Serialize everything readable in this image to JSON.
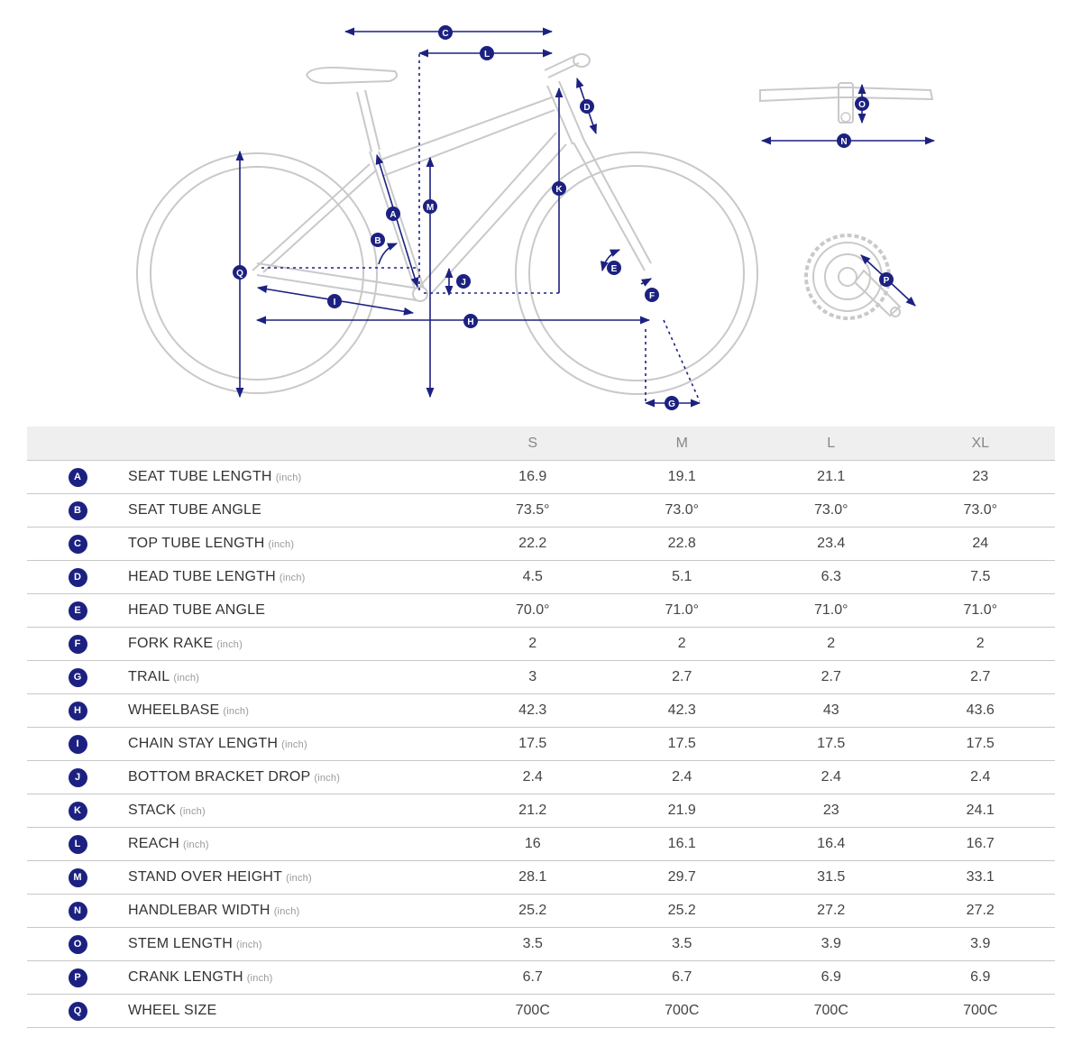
{
  "columns": [
    "S",
    "M",
    "L",
    "XL"
  ],
  "rows": [
    {
      "letter": "A",
      "name": "SEAT TUBE LENGTH",
      "unit": "(inch)",
      "values": [
        "16.9",
        "19.1",
        "21.1",
        "23"
      ]
    },
    {
      "letter": "B",
      "name": "SEAT TUBE ANGLE",
      "unit": "",
      "values": [
        "73.5°",
        "73.0°",
        "73.0°",
        "73.0°"
      ]
    },
    {
      "letter": "C",
      "name": "TOP TUBE LENGTH",
      "unit": "(inch)",
      "values": [
        "22.2",
        "22.8",
        "23.4",
        "24"
      ]
    },
    {
      "letter": "D",
      "name": "HEAD TUBE LENGTH",
      "unit": "(inch)",
      "values": [
        "4.5",
        "5.1",
        "6.3",
        "7.5"
      ]
    },
    {
      "letter": "E",
      "name": "HEAD TUBE ANGLE",
      "unit": "",
      "values": [
        "70.0°",
        "71.0°",
        "71.0°",
        "71.0°"
      ]
    },
    {
      "letter": "F",
      "name": "FORK RAKE",
      "unit": "(inch)",
      "values": [
        "2",
        "2",
        "2",
        "2"
      ]
    },
    {
      "letter": "G",
      "name": "TRAIL",
      "unit": "(inch)",
      "values": [
        "3",
        "2.7",
        "2.7",
        "2.7"
      ]
    },
    {
      "letter": "H",
      "name": "WHEELBASE",
      "unit": "(inch)",
      "values": [
        "42.3",
        "42.3",
        "43",
        "43.6"
      ]
    },
    {
      "letter": "I",
      "name": "CHAIN STAY LENGTH",
      "unit": "(inch)",
      "values": [
        "17.5",
        "17.5",
        "17.5",
        "17.5"
      ]
    },
    {
      "letter": "J",
      "name": "BOTTOM BRACKET DROP",
      "unit": "(inch)",
      "values": [
        "2.4",
        "2.4",
        "2.4",
        "2.4"
      ]
    },
    {
      "letter": "K",
      "name": "STACK",
      "unit": "(inch)",
      "values": [
        "21.2",
        "21.9",
        "23",
        "24.1"
      ]
    },
    {
      "letter": "L",
      "name": "REACH",
      "unit": "(inch)",
      "values": [
        "16",
        "16.1",
        "16.4",
        "16.7"
      ]
    },
    {
      "letter": "M",
      "name": "STAND OVER HEIGHT",
      "unit": "(inch)",
      "values": [
        "28.1",
        "29.7",
        "31.5",
        "33.1"
      ]
    },
    {
      "letter": "N",
      "name": "HANDLEBAR WIDTH",
      "unit": "(inch)",
      "values": [
        "25.2",
        "25.2",
        "27.2",
        "27.2"
      ]
    },
    {
      "letter": "O",
      "name": "STEM LENGTH",
      "unit": "(inch)",
      "values": [
        "3.5",
        "3.5",
        "3.9",
        "3.9"
      ]
    },
    {
      "letter": "P",
      "name": "CRANK LENGTH",
      "unit": "(inch)",
      "values": [
        "6.7",
        "6.7",
        "6.9",
        "6.9"
      ]
    },
    {
      "letter": "Q",
      "name": "WHEEL SIZE",
      "unit": "",
      "values": [
        "700C",
        "700C",
        "700C",
        "700C"
      ]
    }
  ],
  "colors": {
    "accent": "#1c2181",
    "frame": "#c9c9c9",
    "header_bg": "#efefef",
    "rule": "#c8c8c8"
  },
  "icons": {
    "diagram": "bike-geometry-diagram",
    "handlebar": "handlebar-icon",
    "crank": "crankset-icon"
  }
}
